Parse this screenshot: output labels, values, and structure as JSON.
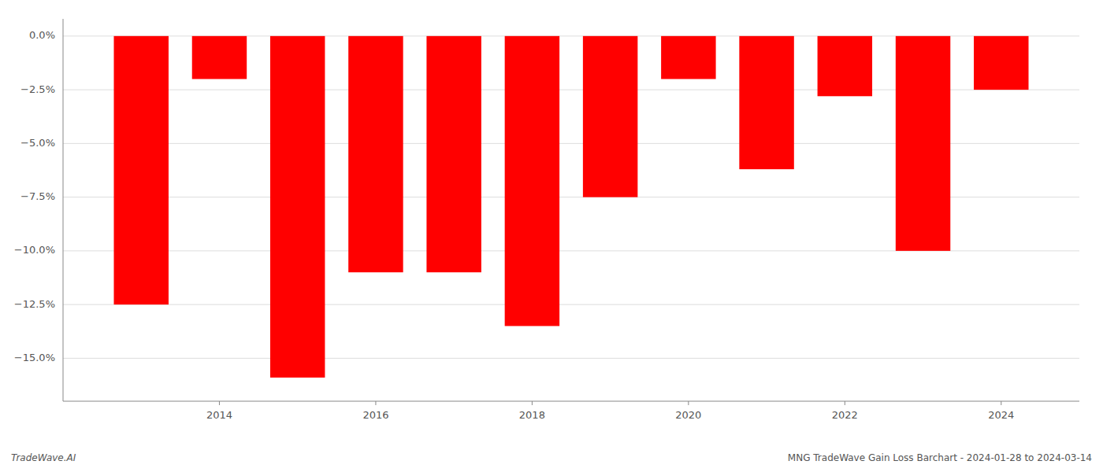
{
  "chart_data": {
    "type": "bar",
    "title": "MNG TradeWave Gain Loss Barchart - 2024-01-28 to 2024-03-14",
    "annotations": [
      "TradeWave.AI"
    ],
    "x": [
      2013,
      2014,
      2015,
      2016,
      2017,
      2018,
      2019,
      2020,
      2021,
      2022,
      2023,
      2024
    ],
    "values": [
      -12.5,
      -2.0,
      -15.9,
      -11.0,
      -11.0,
      -13.5,
      -7.5,
      -2.0,
      -6.2,
      -2.8,
      -10.0,
      -2.5
    ],
    "color": "#ff0000",
    "xlim": [
      2012,
      2025
    ],
    "xticks": [
      2014,
      2016,
      2018,
      2020,
      2022,
      2024
    ],
    "ylim": [
      -17.0,
      0.8
    ],
    "yticks": [
      {
        "value": 0.0,
        "label": "0.0%"
      },
      {
        "value": -2.5,
        "label": "−2.5%"
      },
      {
        "value": -5.0,
        "label": "−5.0%"
      },
      {
        "value": -7.5,
        "label": "−7.5%"
      },
      {
        "value": -10.0,
        "label": "−10.0%"
      },
      {
        "value": -12.5,
        "label": "−12.5%"
      },
      {
        "value": -15.0,
        "label": "−15.0%"
      }
    ],
    "grid": true
  }
}
